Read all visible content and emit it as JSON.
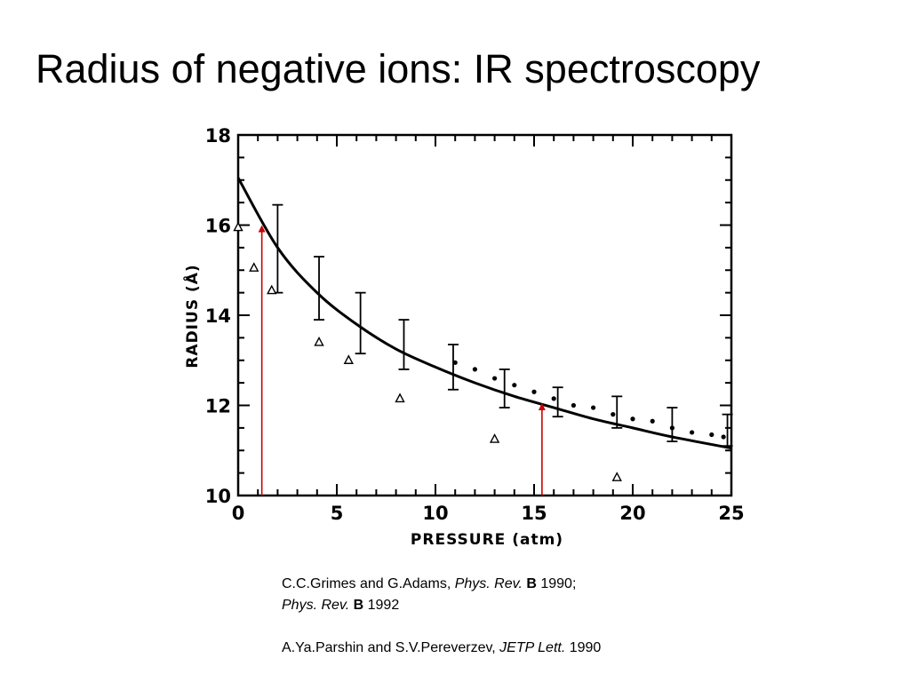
{
  "slide": {
    "title": "Radius of negative ions: IR spectroscopy"
  },
  "chart_data": {
    "type": "scatter",
    "xlabel": "PRESSURE (atm)",
    "ylabel": "RADIUS (Å)",
    "xlim": [
      0,
      25
    ],
    "ylim": [
      10,
      18
    ],
    "xticks": [
      "0",
      "5",
      "10",
      "15",
      "20",
      "25"
    ],
    "yticks": [
      "10",
      "12",
      "14",
      "16",
      "18"
    ],
    "grid": false,
    "series": [
      {
        "kind": "errorbars",
        "points": [
          {
            "x": 2.0,
            "y": 15.5,
            "ylow": 14.5,
            "yhigh": 16.45
          },
          {
            "x": 4.1,
            "y": 14.45,
            "ylow": 13.9,
            "yhigh": 15.3
          },
          {
            "x": 6.2,
            "y": 13.75,
            "ylow": 13.15,
            "yhigh": 14.5
          },
          {
            "x": 8.4,
            "y": 13.25,
            "ylow": 12.8,
            "yhigh": 13.9
          },
          {
            "x": 10.9,
            "y": 12.85,
            "ylow": 12.35,
            "yhigh": 13.35
          },
          {
            "x": 13.5,
            "y": 12.35,
            "ylow": 11.95,
            "yhigh": 12.8
          },
          {
            "x": 16.2,
            "y": 12.05,
            "ylow": 11.75,
            "yhigh": 12.4
          },
          {
            "x": 19.2,
            "y": 11.8,
            "ylow": 11.5,
            "yhigh": 12.2
          },
          {
            "x": 22.0,
            "y": 11.5,
            "ylow": 11.2,
            "yhigh": 11.95
          },
          {
            "x": 24.8,
            "y": 11.4,
            "ylow": 11.1,
            "yhigh": 11.8
          }
        ]
      },
      {
        "kind": "triangles",
        "points": [
          {
            "x": 0.0,
            "y": 15.95
          },
          {
            "x": 0.8,
            "y": 15.05
          },
          {
            "x": 1.7,
            "y": 14.55
          },
          {
            "x": 4.1,
            "y": 13.4
          },
          {
            "x": 5.6,
            "y": 13.0
          },
          {
            "x": 8.2,
            "y": 12.15
          },
          {
            "x": 13.0,
            "y": 11.25
          },
          {
            "x": 19.2,
            "y": 10.4
          }
        ]
      },
      {
        "kind": "dots",
        "points": [
          {
            "x": 11.0,
            "y": 12.95
          },
          {
            "x": 12.0,
            "y": 12.8
          },
          {
            "x": 13.0,
            "y": 12.6
          },
          {
            "x": 14.0,
            "y": 12.45
          },
          {
            "x": 15.0,
            "y": 12.3
          },
          {
            "x": 16.0,
            "y": 12.15
          },
          {
            "x": 17.0,
            "y": 12.0
          },
          {
            "x": 18.0,
            "y": 11.95
          },
          {
            "x": 19.0,
            "y": 11.8
          },
          {
            "x": 20.0,
            "y": 11.7
          },
          {
            "x": 21.0,
            "y": 11.65
          },
          {
            "x": 22.0,
            "y": 11.5
          },
          {
            "x": 23.0,
            "y": 11.4
          },
          {
            "x": 24.0,
            "y": 11.35
          },
          {
            "x": 24.6,
            "y": 11.3
          }
        ]
      },
      {
        "kind": "fit-curve",
        "points": [
          {
            "x": 0,
            "y": 17.05
          },
          {
            "x": 2,
            "y": 15.5
          },
          {
            "x": 4,
            "y": 14.5
          },
          {
            "x": 6,
            "y": 13.8
          },
          {
            "x": 8,
            "y": 13.25
          },
          {
            "x": 10,
            "y": 12.85
          },
          {
            "x": 12,
            "y": 12.5
          },
          {
            "x": 14,
            "y": 12.2
          },
          {
            "x": 16,
            "y": 11.95
          },
          {
            "x": 18,
            "y": 11.7
          },
          {
            "x": 20,
            "y": 11.5
          },
          {
            "x": 22,
            "y": 11.3
          },
          {
            "x": 25,
            "y": 11.05
          }
        ]
      }
    ],
    "annotations": [
      {
        "kind": "arrow",
        "x": 1.2,
        "y_from": 10,
        "y_to": 16.0,
        "color": "#cc0000"
      },
      {
        "kind": "arrow",
        "x": 15.4,
        "y_from": 10,
        "y_to": 12.05,
        "color": "#cc0000"
      }
    ]
  },
  "citations": {
    "line1": {
      "authors": "C.C.Grimes and G.Adams, ",
      "journal": "Phys. Rev.",
      "vol": "B",
      "year": " 1990;"
    },
    "line2": {
      "journal": "Phys. Rev.",
      "vol": "B",
      "year": " 1992"
    },
    "line3": {
      "authors": "A.Ya.Parshin and S.V.Pereverzev, ",
      "journal": "JETP Lett.",
      "year": " 1990"
    }
  }
}
